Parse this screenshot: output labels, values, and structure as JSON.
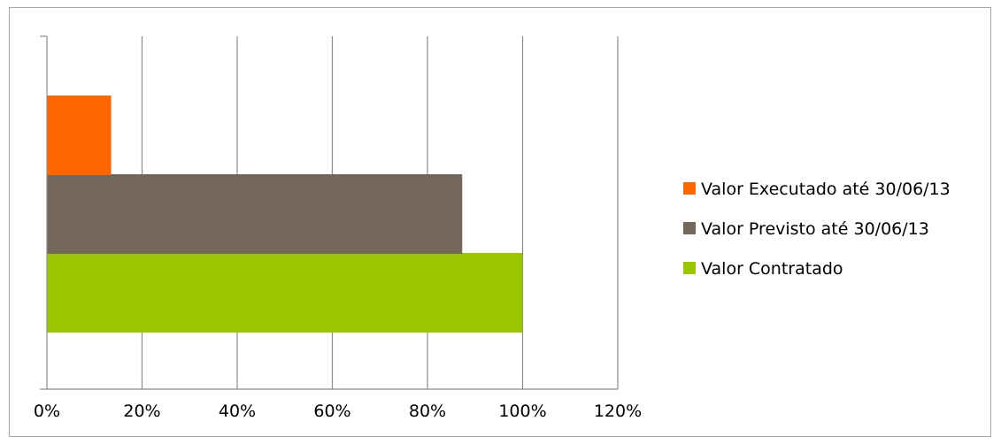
{
  "chart_data": {
    "type": "bar",
    "orientation": "horizontal",
    "title": "",
    "xlabel": "",
    "ylabel": "",
    "xlim": [
      0,
      120
    ],
    "x_ticks": [
      "0%",
      "20%",
      "40%",
      "60%",
      "80%",
      "100%",
      "120%"
    ],
    "x_tick_values": [
      0,
      20,
      40,
      60,
      80,
      100,
      120
    ],
    "grid": "vertical",
    "legend_position": "right",
    "series": [
      {
        "name": "Valor Contratado",
        "value": 100,
        "color": "#99c600"
      },
      {
        "name": "Valor Previsto até 30/06/13",
        "value": 87.3,
        "color": "#726758"
      },
      {
        "name": "Valor Executado até 30/06/13",
        "value": 13.5,
        "color": "#ff6600"
      }
    ],
    "legend": [
      {
        "label": "Valor Executado até 30/06/13",
        "color": "#ff6600"
      },
      {
        "label": "Valor Previsto até 30/06/13",
        "color": "#726758"
      },
      {
        "label": "Valor Contratado",
        "color": "#99c600"
      }
    ]
  }
}
